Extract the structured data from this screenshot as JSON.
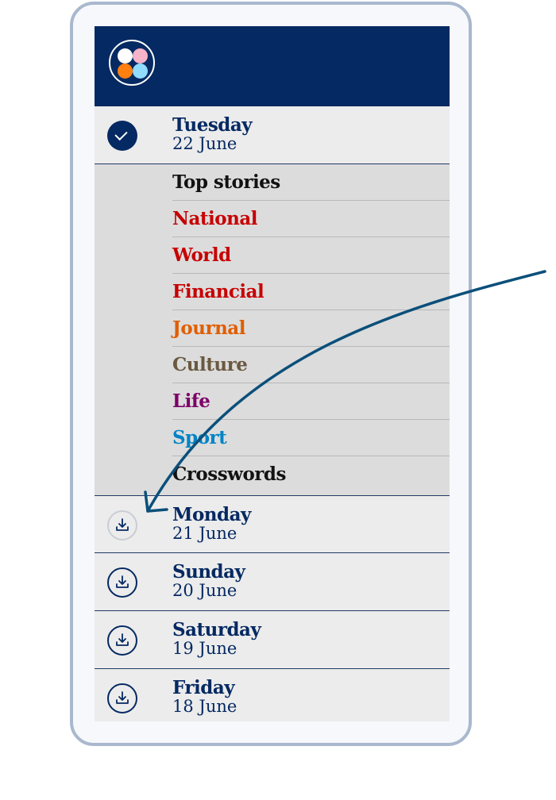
{
  "header": {
    "logo_colors": [
      "#ffffff",
      "#f6b4c8",
      "#ff7f0f",
      "#90dcff"
    ]
  },
  "days": [
    {
      "name": "Tuesday",
      "date": "22 June",
      "status": "downloaded"
    },
    {
      "name": "Monday",
      "date": "21 June",
      "status": "download"
    },
    {
      "name": "Sunday",
      "date": "20 June",
      "status": "download"
    },
    {
      "name": "Saturday",
      "date": "19 June",
      "status": "download"
    },
    {
      "name": "Friday",
      "date": "18 June",
      "status": "download"
    }
  ],
  "sections": [
    {
      "label": "Top stories",
      "color": "#121212"
    },
    {
      "label": "National",
      "color": "#c70000"
    },
    {
      "label": "World",
      "color": "#c70000"
    },
    {
      "label": "Financial",
      "color": "#c70000"
    },
    {
      "label": "Journal",
      "color": "#e05e00"
    },
    {
      "label": "Culture",
      "color": "#6b5840"
    },
    {
      "label": "Life",
      "color": "#7d0068"
    },
    {
      "label": "Sport",
      "color": "#0084c6"
    },
    {
      "label": "Crosswords",
      "color": "#121212"
    }
  ],
  "annotation": {
    "arrow_color": "#0b4f7a"
  }
}
